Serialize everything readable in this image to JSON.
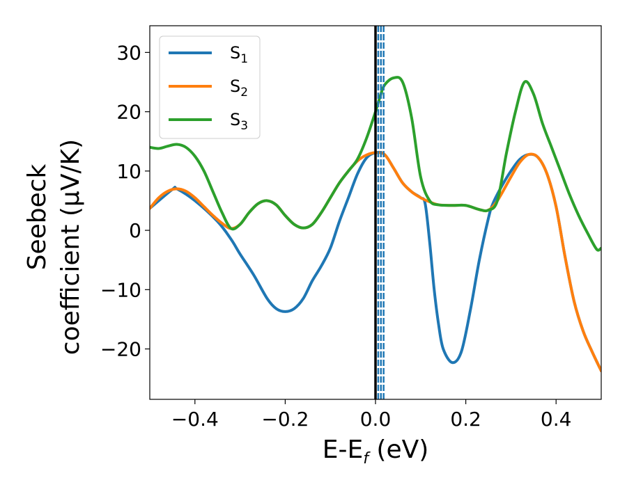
{
  "colors": {
    "S1": "#1f77b4",
    "S2": "#ff7f0e",
    "S3": "#2ca02c",
    "fermi_line": "#000000",
    "dashed_lines": "#1f77b4"
  },
  "chart_data": {
    "type": "line",
    "xlabel": {
      "prefix": "E-E",
      "sub": "f",
      "suffix": " (eV)"
    },
    "ylabel": {
      "line1": "Seebeck",
      "line2": "coefficient  (μV/K)"
    },
    "xlim": [
      -0.5,
      0.5
    ],
    "ylim": [
      -28.5,
      34.5
    ],
    "xticks": [
      -0.4,
      -0.2,
      0.0,
      0.2,
      0.4
    ],
    "xtick_labels": [
      "−0.4",
      "−0.2",
      "0.0",
      "0.2",
      "0.4"
    ],
    "yticks": [
      -20,
      -10,
      0,
      10,
      20,
      30
    ],
    "ytick_labels": [
      "−20",
      "−10",
      "0",
      "10",
      "20",
      "30"
    ],
    "grid": false,
    "legend_position": "top-left",
    "vertical_lines": [
      {
        "x": 0.0,
        "style": "solid",
        "color": "#000000"
      },
      {
        "x": 0.006,
        "style": "dashed",
        "color": "#1f77b4"
      },
      {
        "x": 0.012,
        "style": "dashed",
        "color": "#1f77b4"
      },
      {
        "x": 0.018,
        "style": "dashed",
        "color": "#1f77b4"
      }
    ],
    "series": [
      {
        "name": "S",
        "sub": "1",
        "color": "#1f77b4",
        "points": [
          [
            -0.5,
            3.7
          ],
          [
            -0.45,
            6.9
          ],
          [
            -0.44,
            7.0
          ],
          [
            -0.4,
            5.0
          ],
          [
            -0.35,
            1.5
          ],
          [
            -0.32,
            -1.5
          ],
          [
            -0.3,
            -4.0
          ],
          [
            -0.27,
            -7.5
          ],
          [
            -0.24,
            -11.5
          ],
          [
            -0.22,
            -13.2
          ],
          [
            -0.2,
            -13.7
          ],
          [
            -0.18,
            -13.2
          ],
          [
            -0.16,
            -11.5
          ],
          [
            -0.14,
            -8.5
          ],
          [
            -0.12,
            -6.0
          ],
          [
            -0.1,
            -3.0
          ],
          [
            -0.08,
            1.5
          ],
          [
            -0.06,
            5.5
          ],
          [
            -0.04,
            9.5
          ],
          [
            -0.02,
            12.2
          ],
          [
            0.0,
            13.1
          ],
          [
            0.02,
            12.8
          ],
          [
            0.04,
            10.5
          ],
          [
            0.06,
            8.0
          ],
          [
            0.08,
            6.5
          ],
          [
            0.1,
            5.5
          ],
          [
            0.11,
            4.5
          ],
          [
            0.12,
            -2.0
          ],
          [
            0.13,
            -10.0
          ],
          [
            0.14,
            -16.0
          ],
          [
            0.15,
            -20.0
          ],
          [
            0.17,
            -22.3
          ],
          [
            0.19,
            -20.5
          ],
          [
            0.21,
            -13.5
          ],
          [
            0.23,
            -5.0
          ],
          [
            0.25,
            2.0
          ],
          [
            0.26,
            4.5
          ],
          [
            0.28,
            7.5
          ],
          [
            0.3,
            10.0
          ],
          [
            0.32,
            12.0
          ],
          [
            0.34,
            12.8
          ],
          [
            0.36,
            12.3
          ],
          [
            0.38,
            9.5
          ],
          [
            0.4,
            4.0
          ],
          [
            0.42,
            -4.5
          ],
          [
            0.44,
            -12.0
          ],
          [
            0.46,
            -17.0
          ],
          [
            0.48,
            -20.5
          ],
          [
            0.5,
            -23.7
          ]
        ]
      },
      {
        "name": "S",
        "sub": "2",
        "color": "#ff7f0e",
        "points": [
          [
            -0.5,
            3.7
          ],
          [
            -0.48,
            5.5
          ],
          [
            -0.46,
            6.6
          ],
          [
            -0.44,
            7.0
          ],
          [
            -0.42,
            6.6
          ],
          [
            -0.4,
            5.5
          ],
          [
            -0.38,
            4.0
          ],
          [
            -0.36,
            2.5
          ],
          [
            -0.34,
            1.2
          ],
          [
            -0.32,
            0.3
          ],
          [
            -0.3,
            1.0
          ],
          [
            -0.28,
            3.0
          ],
          [
            -0.26,
            4.5
          ],
          [
            -0.24,
            5.0
          ],
          [
            -0.22,
            4.3
          ],
          [
            -0.2,
            2.5
          ],
          [
            -0.18,
            1.0
          ],
          [
            -0.16,
            0.4
          ],
          [
            -0.14,
            1.0
          ],
          [
            -0.12,
            3.0
          ],
          [
            -0.1,
            5.5
          ],
          [
            -0.08,
            8.0
          ],
          [
            -0.06,
            10.0
          ],
          [
            -0.04,
            11.7
          ],
          [
            -0.02,
            12.7
          ],
          [
            0.0,
            13.1
          ],
          [
            0.02,
            12.8
          ],
          [
            0.04,
            10.5
          ],
          [
            0.06,
            8.0
          ],
          [
            0.08,
            6.5
          ],
          [
            0.1,
            5.5
          ],
          [
            0.12,
            4.8
          ],
          [
            0.14,
            4.3
          ],
          [
            0.17,
            4.2
          ],
          [
            0.2,
            4.2
          ],
          [
            0.23,
            3.5
          ],
          [
            0.25,
            3.4
          ],
          [
            0.27,
            5.0
          ],
          [
            0.3,
            9.0
          ],
          [
            0.32,
            11.5
          ],
          [
            0.34,
            12.8
          ],
          [
            0.36,
            12.3
          ],
          [
            0.38,
            9.5
          ],
          [
            0.4,
            4.0
          ],
          [
            0.42,
            -4.5
          ],
          [
            0.44,
            -12.0
          ],
          [
            0.46,
            -17.0
          ],
          [
            0.48,
            -20.5
          ],
          [
            0.5,
            -23.7
          ]
        ]
      },
      {
        "name": "S",
        "sub": "3",
        "color": "#2ca02c",
        "points": [
          [
            -0.5,
            14.0
          ],
          [
            -0.48,
            13.8
          ],
          [
            -0.46,
            14.2
          ],
          [
            -0.44,
            14.5
          ],
          [
            -0.42,
            14.0
          ],
          [
            -0.4,
            12.5
          ],
          [
            -0.38,
            10.0
          ],
          [
            -0.36,
            6.5
          ],
          [
            -0.34,
            3.0
          ],
          [
            -0.32,
            0.3
          ],
          [
            -0.3,
            1.0
          ],
          [
            -0.28,
            3.0
          ],
          [
            -0.26,
            4.5
          ],
          [
            -0.24,
            5.0
          ],
          [
            -0.22,
            4.3
          ],
          [
            -0.2,
            2.5
          ],
          [
            -0.18,
            1.0
          ],
          [
            -0.16,
            0.4
          ],
          [
            -0.14,
            1.0
          ],
          [
            -0.12,
            3.0
          ],
          [
            -0.1,
            5.5
          ],
          [
            -0.08,
            8.0
          ],
          [
            -0.06,
            10.0
          ],
          [
            -0.04,
            12.0
          ],
          [
            -0.02,
            15.5
          ],
          [
            0.0,
            20.0
          ],
          [
            0.01,
            22.5
          ],
          [
            0.02,
            24.5
          ],
          [
            0.04,
            25.7
          ],
          [
            0.06,
            25.0
          ],
          [
            0.08,
            19.0
          ],
          [
            0.1,
            9.0
          ],
          [
            0.12,
            5.0
          ],
          [
            0.14,
            4.3
          ],
          [
            0.17,
            4.2
          ],
          [
            0.2,
            4.2
          ],
          [
            0.23,
            3.5
          ],
          [
            0.25,
            3.4
          ],
          [
            0.27,
            5.0
          ],
          [
            0.29,
            13.0
          ],
          [
            0.31,
            20.0
          ],
          [
            0.33,
            25.0
          ],
          [
            0.35,
            23.0
          ],
          [
            0.37,
            18.0
          ],
          [
            0.39,
            14.0
          ],
          [
            0.41,
            10.0
          ],
          [
            0.43,
            6.0
          ],
          [
            0.45,
            2.5
          ],
          [
            0.47,
            -0.5
          ],
          [
            0.49,
            -3.2
          ],
          [
            0.5,
            -3.0
          ]
        ]
      }
    ]
  }
}
